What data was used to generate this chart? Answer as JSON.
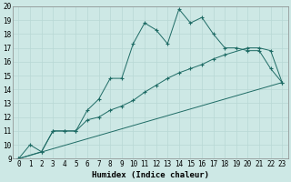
{
  "bg_color": "#cde8e5",
  "grid_color": "#b8d8d5",
  "line_color": "#1e6b65",
  "xlabel": "Humidex (Indice chaleur)",
  "xlim": [
    -0.5,
    23.5
  ],
  "ylim": [
    9,
    20
  ],
  "xticks": [
    0,
    1,
    2,
    3,
    4,
    5,
    6,
    7,
    8,
    9,
    10,
    11,
    12,
    13,
    14,
    15,
    16,
    17,
    18,
    19,
    20,
    21,
    22,
    23
  ],
  "yticks": [
    9,
    10,
    11,
    12,
    13,
    14,
    15,
    16,
    17,
    18,
    19,
    20
  ],
  "curve1_x": [
    0,
    1,
    2,
    3,
    4,
    5,
    6,
    7,
    8,
    9,
    10,
    11,
    12,
    13,
    14,
    15,
    16,
    17,
    18,
    19,
    20,
    21,
    22,
    23
  ],
  "curve1_y": [
    9.0,
    10.0,
    9.5,
    11.0,
    11.0,
    11.0,
    12.5,
    13.3,
    14.8,
    14.8,
    17.3,
    18.8,
    18.3,
    17.3,
    19.8,
    18.8,
    19.2,
    18.0,
    17.0,
    17.0,
    16.8,
    16.8,
    15.5,
    14.5
  ],
  "curve2_x": [
    0,
    2,
    3,
    4,
    5,
    6,
    7,
    8,
    9,
    10,
    11,
    12,
    13,
    14,
    15,
    16,
    17,
    18,
    20,
    21,
    22,
    23
  ],
  "curve2_y": [
    9.0,
    9.5,
    11.0,
    11.0,
    11.0,
    11.8,
    12.0,
    12.5,
    12.8,
    13.2,
    13.8,
    14.3,
    14.8,
    15.2,
    15.5,
    15.8,
    16.2,
    16.5,
    17.0,
    17.0,
    16.8,
    14.5
  ],
  "curve3_x": [
    0,
    23
  ],
  "curve3_y": [
    9.0,
    14.5
  ]
}
